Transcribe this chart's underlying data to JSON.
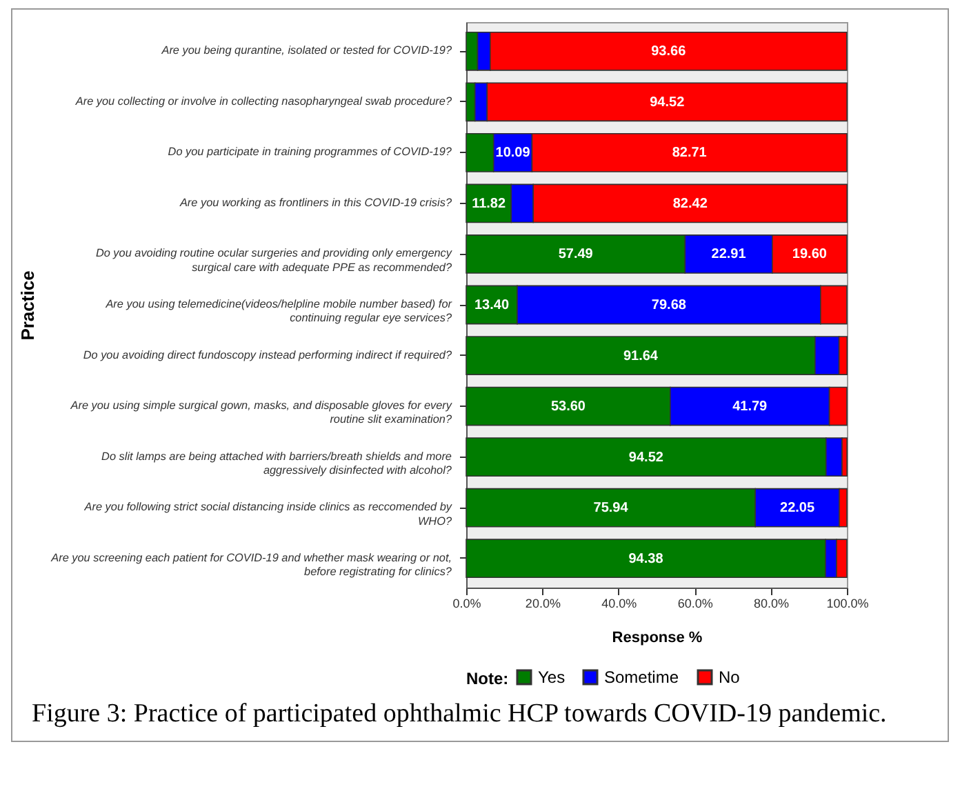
{
  "chart_data": {
    "type": "bar",
    "orientation": "horizontal",
    "stacked": true,
    "categories": [
      "Are you being qurantine, isolated or tested for COVID-19?",
      "Are you collecting or involve in collecting nasopharyngeal swab procedure?",
      "Do you participate in training programmes of COVID-19?",
      "Are you working as frontliners in this COVID-19 crisis?",
      "Do you avoiding routine ocular surgeries and providing only emergency surgical care with adequate PPE as recommended?",
      "Are you using telemedicine(videos/helpline mobile number based) for continuing regular eye services?",
      "Do you avoiding direct fundoscopy instead performing indirect if required?",
      "Are you using simple surgical gown, masks, and disposable gloves for every routine slit examination?",
      "Do slit lamps are being attached with barriers/breath shields and more aggressively disinfected with alcohol?",
      "Are you following strict social distancing inside clinics as reccomended by WHO?",
      "Are you screening each patient for COVID-19 and whether mask wearing or not, before registrating for clinics?"
    ],
    "series": [
      {
        "name": "Yes",
        "color": "#007c00",
        "values": [
          3.0,
          2.3,
          7.2,
          11.82,
          57.49,
          13.4,
          91.64,
          53.6,
          94.52,
          75.94,
          94.38
        ],
        "value_labels": [
          null,
          null,
          null,
          "11.82",
          "57.49",
          "13.40",
          "91.64",
          "53.60",
          "94.52",
          "75.94",
          "94.38"
        ]
      },
      {
        "name": "Sometime",
        "color": "#0000ff",
        "values": [
          3.3,
          3.2,
          10.09,
          5.8,
          22.91,
          79.68,
          6.3,
          41.79,
          4.2,
          22.05,
          2.9
        ],
        "value_labels": [
          null,
          null,
          "10.09",
          null,
          "22.91",
          "79.68",
          null,
          "41.79",
          null,
          "22.05",
          null
        ]
      },
      {
        "name": "No",
        "color": "#ff0000",
        "values": [
          93.66,
          94.52,
          82.71,
          82.42,
          19.6,
          6.9,
          2.1,
          4.6,
          1.3,
          2.0,
          2.7
        ],
        "value_labels": [
          "93.66",
          "94.52",
          "82.71",
          "82.42",
          "19.60",
          null,
          null,
          null,
          null,
          null,
          null
        ]
      }
    ],
    "xlim": [
      0,
      100
    ],
    "xticks": [
      {
        "value": 0,
        "label": "0.0%"
      },
      {
        "value": 20,
        "label": "20.0%"
      },
      {
        "value": 40,
        "label": "40.0%"
      },
      {
        "value": 60,
        "label": "60.0%"
      },
      {
        "value": 80,
        "label": "80.0%"
      },
      {
        "value": 100,
        "label": "100.0%"
      }
    ],
    "xlabel": "Response %",
    "ylabel": "Practice",
    "legend": "bottom",
    "legend_title": "Note:",
    "grid": false,
    "annotations": [
      "Figure 3: Practice of participated ophthalmic HCP towards COVID-19 pandemic."
    ]
  }
}
